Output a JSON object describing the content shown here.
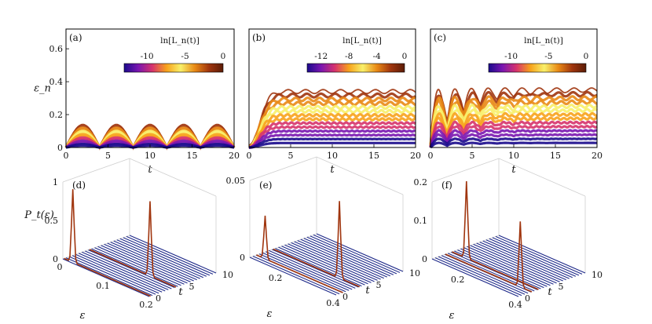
{
  "panels_top": [
    {
      "label": "(a)",
      "colorbar_label": "ln[L_n(t)]",
      "colorbar_ticks": [
        "-10",
        "-5",
        "0"
      ]
    },
    {
      "label": "(b)",
      "colorbar_label": "ln[L_n(t)]",
      "colorbar_ticks": [
        "-12",
        "-8",
        "-4",
        "0"
      ]
    },
    {
      "label": "(c)",
      "colorbar_label": "ln[L_n(t)]",
      "colorbar_ticks": [
        "-10",
        "-5",
        "0"
      ]
    }
  ],
  "panels_bottom": [
    {
      "label": "(d)"
    },
    {
      "label": "(e)"
    },
    {
      "label": "(f)"
    }
  ],
  "chart_data": [
    {
      "type": "area",
      "panel": "(a)",
      "xlabel": "t",
      "ylabel": "ε_n",
      "xlim": [
        0,
        20
      ],
      "ylim": [
        0,
        0.72
      ],
      "xticks": [
        0,
        5,
        10,
        15,
        20
      ],
      "yticks": [
        0,
        0.2,
        0.4,
        0.6
      ],
      "ytick_labels": [
        "0",
        "0.2",
        "0.4",
        "0.6"
      ],
      "colorbar": {
        "label": "ln[L_n(t)]",
        "range": [
          -13,
          0
        ],
        "ticks": [
          -10,
          -5,
          0
        ],
        "colors": [
          "#1a0a8c",
          "#7a16b0",
          "#d6336c",
          "#f7a21b",
          "#f8f06a",
          "#e98a16",
          "#a0350e",
          "#5a1c07"
        ]
      },
      "envelope": {
        "mode": "oscillating",
        "max": 0.14,
        "period": 4.0,
        "min": 0.0
      }
    },
    {
      "type": "area",
      "panel": "(b)",
      "xlabel": "t",
      "ylabel": "",
      "xlim": [
        0,
        20
      ],
      "ylim": [
        0,
        0.72
      ],
      "xticks": [
        0,
        5,
        10,
        15,
        20
      ],
      "yticks": [],
      "colorbar": {
        "label": "ln[L_n(t)]",
        "range": [
          -14,
          0
        ],
        "ticks": [
          -12,
          -8,
          -4,
          0
        ],
        "colors": [
          "#1a0a8c",
          "#7a16b0",
          "#d6336c",
          "#f7a21b",
          "#f8f06a",
          "#e98a16",
          "#a0350e",
          "#5a1c07"
        ]
      },
      "envelope": {
        "mode": "saturating",
        "max": 0.34,
        "rise_time": 2.5,
        "plateau": 0.34
      }
    },
    {
      "type": "area",
      "panel": "(c)",
      "xlabel": "t",
      "ylabel": "",
      "xlim": [
        0,
        20
      ],
      "ylim": [
        0,
        0.72
      ],
      "xticks": [
        0,
        5,
        10,
        15,
        20
      ],
      "yticks": [],
      "colorbar": {
        "label": "ln[L_n(t)]",
        "range": [
          -13,
          0
        ],
        "ticks": [
          -10,
          -5,
          0
        ],
        "colors": [
          "#1a0a8c",
          "#7a16b0",
          "#d6336c",
          "#f7a21b",
          "#f8f06a",
          "#e98a16",
          "#a0350e",
          "#5a1c07"
        ]
      },
      "envelope": {
        "mode": "oscillating_decaying",
        "max": 0.37,
        "period": 2.0,
        "plateau": 0.35
      }
    },
    {
      "type": "line",
      "panel": "(d)",
      "xlabel": "ε",
      "ylabel": "P_t(ε)",
      "zlabel": "t",
      "xlim": [
        0,
        0.2
      ],
      "tlim": [
        0,
        10
      ],
      "zlim": [
        0,
        1
      ],
      "xticks": [
        0,
        0.1,
        0.2
      ],
      "xtick_labels": [
        "0",
        "0.1",
        "0.2"
      ],
      "tticks": [
        0,
        5,
        10
      ],
      "zticks": [
        0,
        0.5,
        1
      ],
      "ztick_labels": [
        "0",
        "0.5",
        "1"
      ],
      "peaks": [
        {
          "eps": 0.02,
          "t": 0.2,
          "height": 0.95
        },
        {
          "eps": 0.14,
          "t": 4.0,
          "height": 0.97
        }
      ]
    },
    {
      "type": "line",
      "panel": "(e)",
      "xlabel": "ε",
      "ylabel": "",
      "zlabel": "t",
      "xlim": [
        0.1,
        0.4
      ],
      "tlim": [
        0,
        10
      ],
      "zlim": [
        0,
        0.05
      ],
      "xticks": [
        0.2,
        0.4
      ],
      "xtick_labels": [
        "0.2",
        "0.4"
      ],
      "tticks": [
        0,
        5,
        10
      ],
      "zticks": [
        0,
        0.05
      ],
      "ztick_labels": [
        "0",
        "0.05"
      ],
      "peaks": [
        {
          "eps": 0.13,
          "t": 1.0,
          "height": 0.028
        },
        {
          "eps": 0.33,
          "t": 3.5,
          "height": 0.05
        }
      ]
    },
    {
      "type": "line",
      "panel": "(f)",
      "xlabel": "ε",
      "ylabel": "",
      "zlabel": "t",
      "xlim": [
        0.1,
        0.4
      ],
      "tlim": [
        0,
        10
      ],
      "zlim": [
        0,
        0.2
      ],
      "xticks": [
        0.2,
        0.4
      ],
      "xtick_labels": [
        "0.2",
        "0.4"
      ],
      "tticks": [
        0,
        5,
        10
      ],
      "zticks": [
        0,
        0.1,
        0.2
      ],
      "ztick_labels": [
        "0",
        "0.1",
        "0.2"
      ],
      "peaks": [
        {
          "eps": 0.15,
          "t": 3.0,
          "height": 0.2
        },
        {
          "eps": 0.36,
          "t": 2.0,
          "height": 0.17
        }
      ]
    }
  ]
}
